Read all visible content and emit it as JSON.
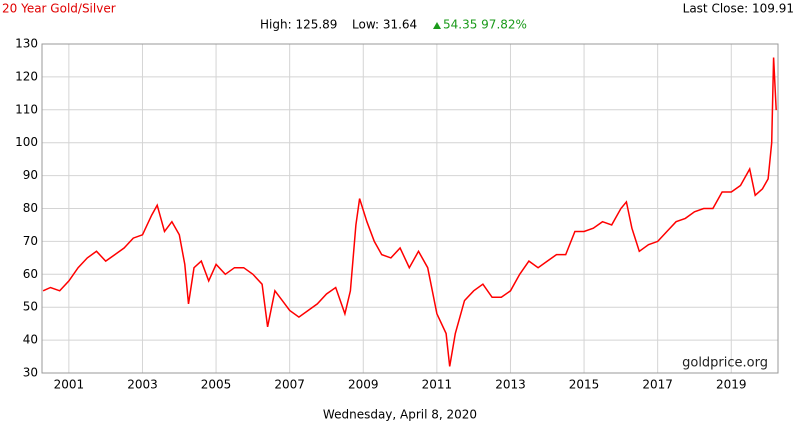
{
  "chart_data": {
    "type": "line",
    "title": "20 Year Gold/Silver",
    "last_close": "Last Close: 109.91",
    "high": "High: 125.89",
    "low": "Low: 31.64",
    "change": "54.35 97.82%",
    "watermark": "goldprice.org",
    "date": "Wednesday, April 8, 2020",
    "x": [
      2000.3,
      2000.5,
      2000.75,
      2001.0,
      2001.25,
      2001.5,
      2001.75,
      2002.0,
      2002.25,
      2002.5,
      2002.75,
      2003.0,
      2003.25,
      2003.4,
      2003.6,
      2003.8,
      2004.0,
      2004.15,
      2004.25,
      2004.4,
      2004.6,
      2004.8,
      2005.0,
      2005.25,
      2005.5,
      2005.75,
      2006.0,
      2006.25,
      2006.4,
      2006.6,
      2006.8,
      2007.0,
      2007.25,
      2007.5,
      2007.75,
      2008.0,
      2008.25,
      2008.5,
      2008.65,
      2008.8,
      2008.9,
      2009.1,
      2009.3,
      2009.5,
      2009.75,
      2010.0,
      2010.25,
      2010.5,
      2010.75,
      2011.0,
      2011.25,
      2011.35,
      2011.5,
      2011.75,
      2012.0,
      2012.25,
      2012.5,
      2012.75,
      2013.0,
      2013.25,
      2013.5,
      2013.75,
      2014.0,
      2014.25,
      2014.5,
      2014.75,
      2015.0,
      2015.25,
      2015.5,
      2015.75,
      2016.0,
      2016.15,
      2016.3,
      2016.5,
      2016.75,
      2017.0,
      2017.25,
      2017.5,
      2017.75,
      2018.0,
      2018.25,
      2018.5,
      2018.75,
      2019.0,
      2019.25,
      2019.5,
      2019.65,
      2019.85,
      2020.0,
      2020.1,
      2020.15,
      2020.22
    ],
    "series": [
      {
        "name": "Gold/Silver",
        "color": "#ff0000",
        "values": [
          55,
          56,
          55,
          58,
          62,
          65,
          67,
          64,
          66,
          68,
          71,
          72,
          78,
          81,
          73,
          76,
          72,
          63,
          51,
          62,
          64,
          58,
          63,
          60,
          62,
          62,
          60,
          57,
          44,
          55,
          52,
          49,
          47,
          49,
          51,
          54,
          56,
          48,
          55,
          75,
          83,
          76,
          70,
          66,
          65,
          68,
          62,
          67,
          62,
          48,
          42,
          32,
          42,
          52,
          55,
          57,
          53,
          53,
          55,
          60,
          64,
          62,
          64,
          66,
          66,
          73,
          73,
          74,
          76,
          75,
          80,
          82,
          74,
          67,
          69,
          70,
          73,
          76,
          77,
          79,
          80,
          80,
          85,
          85,
          87,
          92,
          84,
          86,
          89,
          100,
          125.89,
          109.91
        ]
      }
    ],
    "xlim": [
      2000.27,
      2020.27
    ],
    "xticks": [
      2001,
      2003,
      2005,
      2007,
      2009,
      2011,
      2013,
      2015,
      2017,
      2019
    ],
    "ylim": [
      30,
      130
    ],
    "yticks": [
      30,
      40,
      50,
      60,
      70,
      80,
      90,
      100,
      110,
      120,
      130
    ],
    "grid": true
  }
}
